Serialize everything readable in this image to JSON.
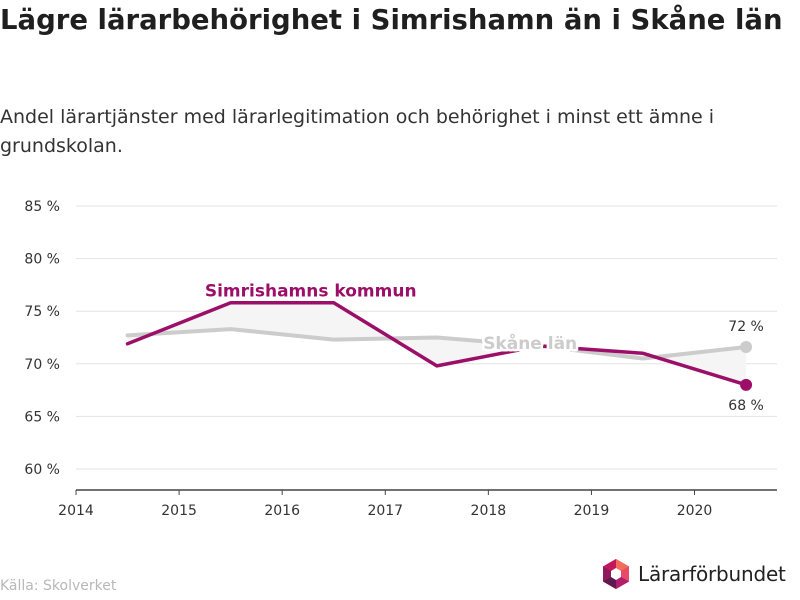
{
  "title": "Lägre lärarbehörighet i Simrishamn än i Skåne län",
  "subtitle": "Andel lärartjänster med lärarlegitimation och behörighet i minst ett ämne i grundskolan.",
  "source": "Källa: Skolverket",
  "logo": {
    "name": "Lärarförbundet",
    "icon": "hexagon-logo-icon"
  },
  "colors": {
    "kommun": "#9c0f68",
    "lan": "#cccccc",
    "grid": "#e3e3e3",
    "axis": "#444444"
  },
  "chart_data": {
    "type": "line",
    "x_tick_labels": [
      "2014",
      "2015",
      "2016",
      "2017",
      "2018",
      "2019",
      "2020"
    ],
    "y_tick_labels": [
      "60 %",
      "65 %",
      "70 %",
      "75 %",
      "80 %",
      "85 %"
    ],
    "y_ticks": [
      60,
      65,
      70,
      75,
      80,
      85
    ],
    "xlim": [
      2014,
      2020.8
    ],
    "ylim": [
      58,
      87
    ],
    "grid": true,
    "series": [
      {
        "name": "Skåne län",
        "key": "lan",
        "x": [
          2014.5,
          2015.5,
          2016.5,
          2017.5,
          2018.5,
          2019.5,
          2020.5
        ],
        "values": [
          72.7,
          73.3,
          72.3,
          72.5,
          71.7,
          70.5,
          71.6
        ],
        "end_label": "72 %"
      },
      {
        "name": "Simrishamns kommun",
        "key": "kommun",
        "x": [
          2014.5,
          2015.5,
          2016.5,
          2017.5,
          2018.5,
          2019.5,
          2020.5
        ],
        "values": [
          71.9,
          75.8,
          75.8,
          69.8,
          71.7,
          71.0,
          68.0
        ],
        "end_label": "68 %"
      }
    ]
  }
}
